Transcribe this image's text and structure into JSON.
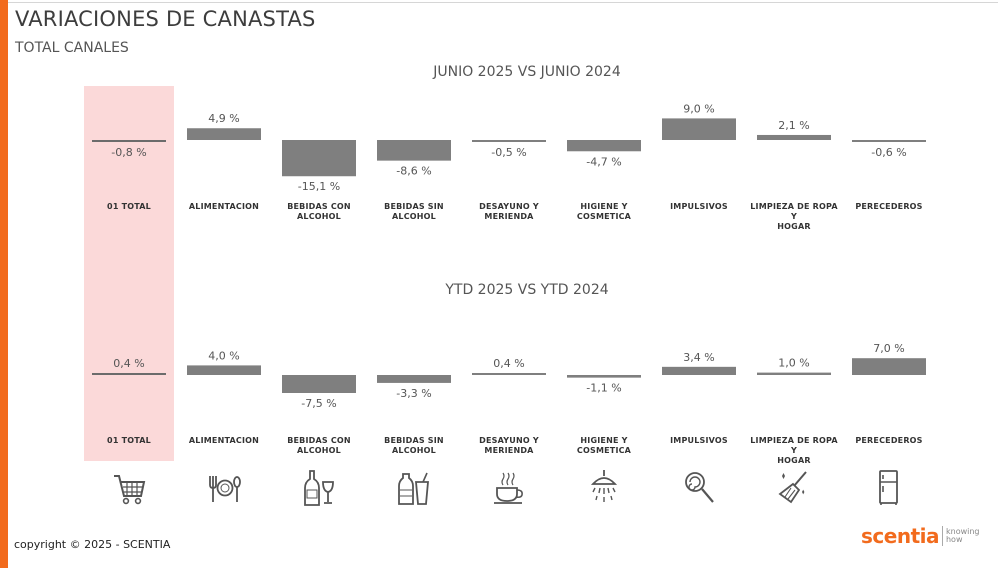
{
  "page": {
    "title": "VARIACIONES DE CANASTAS",
    "subtitle": "TOTAL CANALES",
    "copyright": "copyright © 2025 - SCENTIA",
    "logo_word": "scentia",
    "logo_tag_1": "knowing",
    "logo_tag_2": "how"
  },
  "colors": {
    "accent": "#f26b1d",
    "bar": "#7f7f7f",
    "total_highlight": "#fbd9d9"
  },
  "categories": [
    {
      "line1": "01 TOTAL",
      "line2": ""
    },
    {
      "line1": "ALIMENTACION",
      "line2": ""
    },
    {
      "line1": "BEBIDAS CON",
      "line2": "ALCOHOL"
    },
    {
      "line1": "BEBIDAS SIN",
      "line2": "ALCOHOL"
    },
    {
      "line1": "DESAYUNO Y",
      "line2": "MERIENDA"
    },
    {
      "line1": "HIGIENE Y",
      "line2": "COSMETICA"
    },
    {
      "line1": "IMPULSIVOS",
      "line2": ""
    },
    {
      "line1": "LIMPIEZA DE ROPA Y",
      "line2": "HOGAR"
    },
    {
      "line1": "PERECEDEROS",
      "line2": ""
    }
  ],
  "icons": [
    "cart-icon",
    "cutlery-icon",
    "wine-bottle-icon",
    "soda-bottle-icon",
    "coffee-cup-icon",
    "shower-icon",
    "lollipop-icon",
    "broom-icon",
    "fridge-icon"
  ],
  "chart_data": [
    {
      "type": "bar",
      "title": "JUNIO 2025 VS JUNIO 2024",
      "categories": [
        "01 TOTAL",
        "ALIMENTACION",
        "BEBIDAS CON ALCOHOL",
        "BEBIDAS SIN ALCOHOL",
        "DESAYUNO Y MERIENDA",
        "HIGIENE Y COSMETICA",
        "IMPULSIVOS",
        "LIMPIEZA DE ROPA Y HOGAR",
        "PERECEDEROS"
      ],
      "values": [
        -0.8,
        4.9,
        -15.1,
        -8.6,
        -0.5,
        -4.7,
        9.0,
        2.1,
        -0.6
      ],
      "labels": [
        "-0,8 %",
        "4,9 %",
        "-15,1 %",
        "-8,6 %",
        "-0,5 %",
        "-4,7 %",
        "9,0 %",
        "2,1 %",
        "-0,6 %"
      ]
    },
    {
      "type": "bar",
      "title": "YTD 2025 VS YTD 2024",
      "categories": [
        "01 TOTAL",
        "ALIMENTACION",
        "BEBIDAS CON ALCOHOL",
        "BEBIDAS SIN ALCOHOL",
        "DESAYUNO Y MERIENDA",
        "HIGIENE Y COSMETICA",
        "IMPULSIVOS",
        "LIMPIEZA DE ROPA Y HOGAR",
        "PERECEDEROS"
      ],
      "values": [
        0.4,
        4.0,
        -7.5,
        -3.3,
        0.4,
        -1.1,
        3.4,
        1.0,
        7.0
      ],
      "labels": [
        "0,4 %",
        "4,0 %",
        "-7,5 %",
        "-3,3 %",
        "0,4 %",
        "-1,1 %",
        "3,4 %",
        "1,0 %",
        "7,0 %"
      ]
    }
  ]
}
